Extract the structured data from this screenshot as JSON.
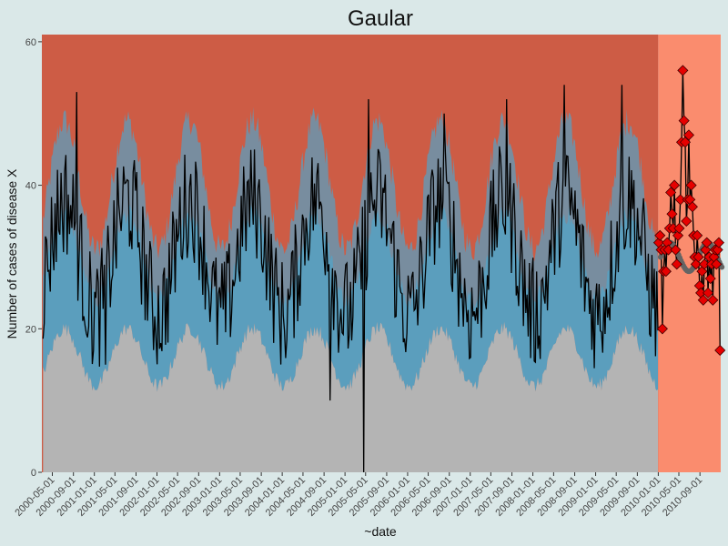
{
  "chart_data": {
    "type": "area",
    "title": "Gaular",
    "xlabel": "~date",
    "ylabel": "Number of cases of disease X",
    "ylim": [
      0,
      61
    ],
    "y_ticks": [
      0,
      20,
      40,
      60
    ],
    "x_ticks": [
      "2000-05-01",
      "2000-09-01",
      "2001-01-01",
      "2001-05-01",
      "2001-09-01",
      "2002-01-01",
      "2002-05-01",
      "2002-09-01",
      "2003-01-01",
      "2003-05-01",
      "2003-09-01",
      "2004-01-01",
      "2004-05-01",
      "2004-09-01",
      "2005-01-01",
      "2005-05-01",
      "2005-09-01",
      "2006-01-01",
      "2006-05-01",
      "2006-09-01",
      "2007-01-01",
      "2007-05-01",
      "2007-09-01",
      "2008-01-01",
      "2008-05-01",
      "2008-09-01",
      "2009-01-01",
      "2009-05-01",
      "2009-09-01",
      "2010-01-01",
      "2010-05-01",
      "2010-09-01"
    ],
    "x_range": [
      "2000-03-01",
      "2010-12-31"
    ],
    "training_end": "2010-01-01",
    "colors": {
      "background": "#dae8e8",
      "upper_band": "#cd5c45",
      "middle_band": "#5b9ebd",
      "lower_band": "#b4b4b4",
      "forecast_region": "#fa8c6e",
      "line": "#000000",
      "forecast_points": "#e60000",
      "forecast_expected": "#646464"
    },
    "seasonal_model": {
      "lower_band_base": 16,
      "lower_band_amp": 4,
      "middle_band_base": 22,
      "middle_band_amp": 6,
      "upper_band_base": 40,
      "upper_band_amp": 9,
      "peak_month": "late June / July"
    },
    "weekly_observed_highlights": [
      {
        "date": "2000-09-20",
        "value": 53
      },
      {
        "date": "2001-03-05",
        "value": 15
      },
      {
        "date": "2004-10-05",
        "value": 10
      },
      {
        "date": "2005-04-20",
        "value": 0
      },
      {
        "date": "2005-05-15",
        "value": 52
      },
      {
        "date": "2006-08-01",
        "value": 50
      },
      {
        "date": "2007-08-01",
        "value": 52
      },
      {
        "date": "2008-07-01",
        "value": 54
      },
      {
        "date": "2009-06-01",
        "value": 54
      }
    ],
    "forecast_points": [
      {
        "date": "2010-01-04",
        "value": 32
      },
      {
        "date": "2010-01-11",
        "value": 33
      },
      {
        "date": "2010-01-18",
        "value": 31
      },
      {
        "date": "2010-01-25",
        "value": 20
      },
      {
        "date": "2010-02-01",
        "value": 28
      },
      {
        "date": "2010-02-08",
        "value": 31
      },
      {
        "date": "2010-02-15",
        "value": 28
      },
      {
        "date": "2010-02-22",
        "value": 32
      },
      {
        "date": "2010-03-01",
        "value": 31
      },
      {
        "date": "2010-03-08",
        "value": 34
      },
      {
        "date": "2010-03-15",
        "value": 39
      },
      {
        "date": "2010-03-22",
        "value": 36
      },
      {
        "date": "2010-03-29",
        "value": 34
      },
      {
        "date": "2010-04-05",
        "value": 40
      },
      {
        "date": "2010-04-12",
        "value": 31
      },
      {
        "date": "2010-04-19",
        "value": 29
      },
      {
        "date": "2010-04-26",
        "value": 33
      },
      {
        "date": "2010-05-03",
        "value": 34
      },
      {
        "date": "2010-05-10",
        "value": 38
      },
      {
        "date": "2010-05-17",
        "value": 46
      },
      {
        "date": "2010-05-24",
        "value": 56
      },
      {
        "date": "2010-05-31",
        "value": 49
      },
      {
        "date": "2010-06-07",
        "value": 46
      },
      {
        "date": "2010-06-14",
        "value": 35
      },
      {
        "date": "2010-06-21",
        "value": 38
      },
      {
        "date": "2010-06-28",
        "value": 47
      },
      {
        "date": "2010-07-05",
        "value": 38
      },
      {
        "date": "2010-07-12",
        "value": 40
      },
      {
        "date": "2010-07-19",
        "value": 37
      },
      {
        "date": "2010-07-26",
        "value": 33
      },
      {
        "date": "2010-08-02",
        "value": 30
      },
      {
        "date": "2010-08-09",
        "value": 29
      },
      {
        "date": "2010-08-16",
        "value": 33
      },
      {
        "date": "2010-08-23",
        "value": 30
      },
      {
        "date": "2010-08-30",
        "value": 26
      },
      {
        "date": "2010-09-06",
        "value": 25
      },
      {
        "date": "2010-09-13",
        "value": 28
      },
      {
        "date": "2010-09-20",
        "value": 24
      },
      {
        "date": "2010-09-27",
        "value": 29
      },
      {
        "date": "2010-10-04",
        "value": 31
      },
      {
        "date": "2010-10-11",
        "value": 32
      },
      {
        "date": "2010-10-18",
        "value": 25
      },
      {
        "date": "2010-10-25",
        "value": 30
      },
      {
        "date": "2010-11-01",
        "value": 27
      },
      {
        "date": "2010-11-08",
        "value": 29
      },
      {
        "date": "2010-11-15",
        "value": 24
      },
      {
        "date": "2010-11-22",
        "value": 30
      },
      {
        "date": "2010-11-29",
        "value": 31
      },
      {
        "date": "2010-12-06",
        "value": 29
      },
      {
        "date": "2010-12-13",
        "value": 31
      },
      {
        "date": "2010-12-20",
        "value": 32
      },
      {
        "date": "2010-12-27",
        "value": 17
      }
    ]
  }
}
